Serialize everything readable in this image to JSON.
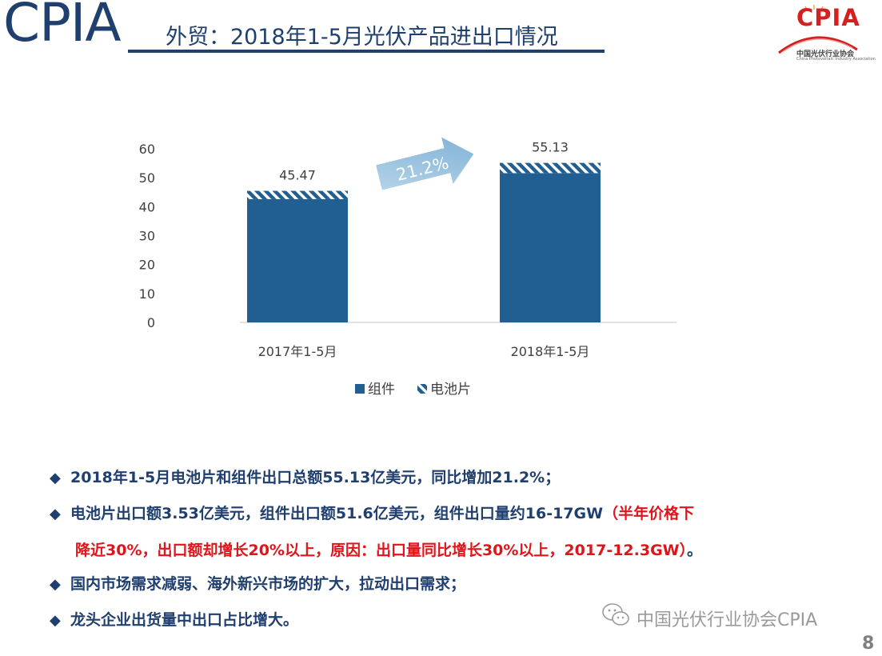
{
  "header": {
    "brand": "CPIA",
    "title": "外贸：2018年1-5月光伏产品进出口情况"
  },
  "logo": {
    "word": "CPIA",
    "org_name": "中国光伏行业协会",
    "org_name_en": "China Photovoltaic Industry Association"
  },
  "colors": {
    "navy": "#1f3f6e",
    "bar": "#215f92",
    "arrow": "#9cc3df",
    "red": "#e0141b"
  },
  "chart_data": {
    "type": "bar",
    "stacked": true,
    "categories": [
      "2017年1-5月",
      "2018年1-5月"
    ],
    "series": [
      {
        "name": "组件",
        "values": [
          42.6,
          51.6
        ],
        "color": "#215f92",
        "pattern": "solid"
      },
      {
        "name": "电池片",
        "values": [
          2.87,
          3.53
        ],
        "color": "#215f92",
        "pattern": "diagonal-stripes"
      }
    ],
    "totals": [
      45.47,
      55.13
    ],
    "total_labels": [
      "45.47",
      "55.13"
    ],
    "yticks": [
      0,
      10,
      20,
      30,
      40,
      50,
      60
    ],
    "ylim": [
      0,
      60
    ],
    "grid": false,
    "legend": "bottom",
    "annotation": {
      "text": "21.2%",
      "shape": "arrow"
    }
  },
  "bullets": {
    "b1": "2018年1-5月电池片和组件出口总额55.13亿美元，同比增加21.2%；",
    "b2_main": "电池片出口额3.53亿美元，组件出口额51.6亿美元，组件出口量约16-17GW",
    "b2_red1": "（半年价格下",
    "b2_red2": "降近30%，出口额却增长20%以上，原因：出口量同比增长30%以上，2017-12.3GW）",
    "b2_end": "。",
    "b3": "国内市场需求减弱、海外新兴市场的扩大，拉动出口需求；",
    "b4": "龙头企业出货量中出口占比增大。",
    "marker": "◆"
  },
  "watermark": "中国光伏行业协会CPIA",
  "page_number": "8"
}
